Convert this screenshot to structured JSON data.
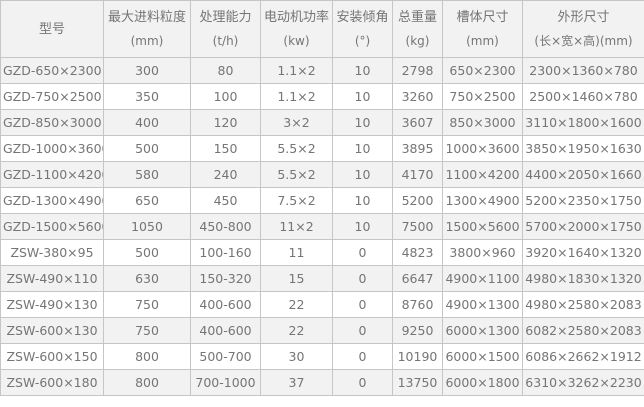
{
  "colors": {
    "border": "#c6c6c6",
    "stripe_row_bg": "#f2f2f2",
    "plain_row_bg": "#ffffff",
    "header_bg": "#f2f2f2",
    "text": "#757575"
  },
  "table": {
    "columns": [
      {
        "name": "型号",
        "unit": ""
      },
      {
        "name": "最大进料粒度",
        "unit": "(mm)"
      },
      {
        "name": "处理能力",
        "unit": "(t/h)"
      },
      {
        "name": "电动机功率",
        "unit": "(kw)"
      },
      {
        "name": "安装倾角",
        "unit": "(°)"
      },
      {
        "name": "总重量",
        "unit": "(kg)"
      },
      {
        "name": "槽体尺寸",
        "unit": "(mm)"
      },
      {
        "name": "外形尺寸",
        "unit": "(长×宽×高)(mm)"
      }
    ],
    "rows": [
      [
        "GZD-650×2300",
        "300",
        "80",
        "1.1×2",
        "10",
        "2798",
        "650×2300",
        "2300×1360×780"
      ],
      [
        "GZD-750×2500",
        "350",
        "100",
        "1.1×2",
        "10",
        "3260",
        "750×2500",
        "2500×1460×780"
      ],
      [
        "GZD-850×3000",
        "400",
        "120",
        "3×2",
        "10",
        "3607",
        "850×3000",
        "3110×1800×1600"
      ],
      [
        "GZD-1000×3600",
        "500",
        "150",
        "5.5×2",
        "10",
        "3895",
        "1000×3600",
        "3850×1950×1630"
      ],
      [
        "GZD-1100×4200",
        "580",
        "240",
        "5.5×2",
        "10",
        "4170",
        "1100×4200",
        "4400×2050×1660"
      ],
      [
        "GZD-1300×4900",
        "650",
        "450",
        "7.5×2",
        "10",
        "5200",
        "1300×4900",
        "5200×2350×1750"
      ],
      [
        "GZD-1500×5600",
        "1050",
        "450-800",
        "11×2",
        "10",
        "7500",
        "1500×5600",
        "5700×2000×1750"
      ],
      [
        "ZSW-380×95",
        "500",
        "100-160",
        "11",
        "0",
        "4823",
        "3800×960",
        "3920×1640×1320"
      ],
      [
        "ZSW-490×110",
        "630",
        "150-320",
        "15",
        "0",
        "6647",
        "4900×1100",
        "4980×1830×1320"
      ],
      [
        "ZSW-490×130",
        "750",
        "400-600",
        "22",
        "0",
        "8760",
        "4900×1300",
        "4980×2580×2083"
      ],
      [
        "ZSW-600×130",
        "750",
        "400-600",
        "22",
        "0",
        "9250",
        "6000×1300",
        "6082×2580×2083"
      ],
      [
        "ZSW-600×150",
        "800",
        "500-700",
        "30",
        "0",
        "10190",
        "6000×1500",
        "6086×2662×1912"
      ],
      [
        "ZSW-600×180",
        "800",
        "700-1000",
        "37",
        "0",
        "13750",
        "6000×1800",
        "6310×3262×2230"
      ]
    ]
  }
}
